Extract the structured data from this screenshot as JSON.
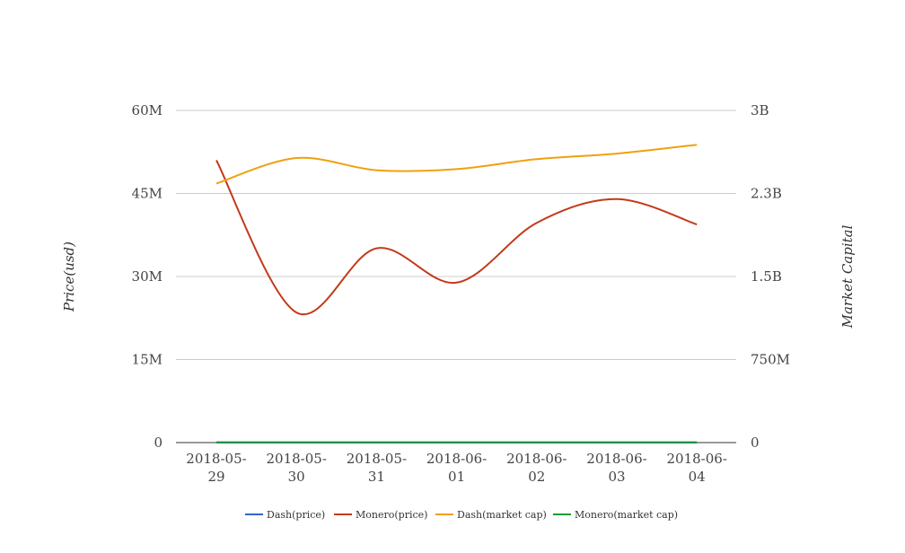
{
  "chart_data": {
    "type": "line",
    "x": [
      "2018-05-29",
      "2018-05-30",
      "2018-05-31",
      "2018-06-01",
      "2018-06-02",
      "2018-06-03",
      "2018-06-04"
    ],
    "x_tick_labels": [
      [
        "2018-05-",
        "29"
      ],
      [
        "2018-05-",
        "30"
      ],
      [
        "2018-05-",
        "31"
      ],
      [
        "2018-06-",
        "01"
      ],
      [
        "2018-06-",
        "02"
      ],
      [
        "2018-06-",
        "03"
      ],
      [
        "2018-06-",
        "04"
      ]
    ],
    "ylabel_left": "Price(usd)",
    "ylabel_right": "Market Capital",
    "ylim_left": [
      0,
      60000000
    ],
    "ylim_right": [
      0,
      3000000000
    ],
    "yticks_left": [
      "0",
      "15M",
      "30M",
      "45M",
      "60M"
    ],
    "yticks_right": [
      "0",
      "750M",
      "1.5B",
      "2.3B",
      "3B"
    ],
    "grid": true,
    "smooth": true,
    "legend_position": "bottom",
    "series": [
      {
        "name": "Dash(price)",
        "axis": "left",
        "color": "#3366cc",
        "values": [
          250,
          280,
          255,
          250,
          265,
          275,
          290
        ]
      },
      {
        "name": "Monero(price)",
        "axis": "left",
        "color": "#c23a1a",
        "values": [
          51000000,
          23500000,
          35100000,
          28900000,
          39700000,
          44000000,
          39400000
        ]
      },
      {
        "name": "Dash(market cap)",
        "axis": "right",
        "color": "#f0a010",
        "values": [
          2340000000,
          2570000000,
          2460000000,
          2470000000,
          2560000000,
          2610000000,
          2690000000
        ]
      },
      {
        "name": "Monero(market cap)",
        "axis": "right",
        "color": "#1e9a32",
        "values": [
          2900000,
          3200000,
          3000000,
          2900000,
          3100000,
          3200000,
          3300000
        ]
      }
    ]
  }
}
